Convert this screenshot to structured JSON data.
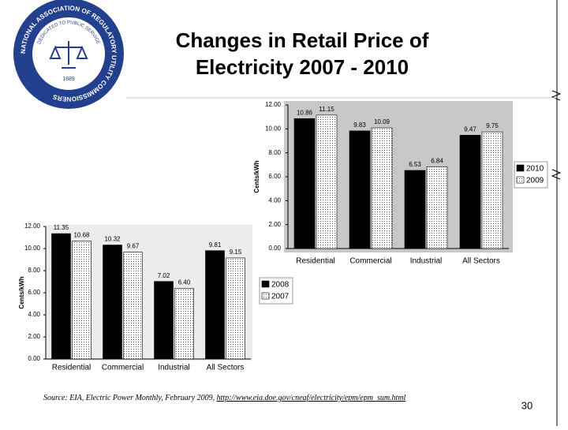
{
  "title_lines": [
    "Changes in Retail Price of",
    "Electricity 2007 - 2010"
  ],
  "logo": {
    "outer_text": "NATIONAL ASSOCIATION OF REGULATORY UTILITY COMMISSIONERS",
    "inner_text": "DEDICATED TO PUBLIC SERVICE",
    "year": "1889"
  },
  "source": {
    "text": "Source: EIA, Electric Power Monthly, February 2009, ",
    "url": "http://www.eia.doe.gov/cneaf/electricity/epm/epm_sum.html"
  },
  "page_number": "30",
  "chart_data": [
    {
      "type": "bar",
      "y_label": "Cents/kWh",
      "categories": [
        "Residential",
        "Commercial",
        "Industrial",
        "All Sectors"
      ],
      "series": [
        {
          "name": "2010",
          "color": "#000000",
          "values": [
            10.86,
            9.83,
            6.53,
            9.47
          ]
        },
        {
          "name": "2009",
          "color": "#ffffff",
          "pattern": "dots",
          "values": [
            11.15,
            10.09,
            6.84,
            9.75
          ]
        }
      ],
      "ylim": [
        0,
        12
      ],
      "yticks": [
        {
          "value": 0,
          "label": "0.00"
        },
        {
          "value": 2,
          "label": "2.00"
        },
        {
          "value": 4,
          "label": "4.00"
        },
        {
          "value": 6,
          "label": "6.00"
        },
        {
          "value": 8,
          "label": "8.00"
        },
        {
          "value": 10,
          "label": "10.00"
        },
        {
          "value": 12,
          "label": "12.00"
        }
      ],
      "legend": "right"
    },
    {
      "type": "bar",
      "y_label": "Cents/kWh",
      "categories": [
        "Residential",
        "Commercial",
        "Industrial",
        "All Sectors"
      ],
      "series": [
        {
          "name": "2008",
          "color": "#000000",
          "values": [
            11.35,
            10.32,
            7.02,
            9.81
          ]
        },
        {
          "name": "2007",
          "color": "#ffffff",
          "pattern": "dots",
          "values": [
            10.68,
            9.67,
            6.4,
            9.15
          ],
          "value_labels": [
            "10.68",
            "9.67",
            "6.40",
            "9.15"
          ]
        }
      ],
      "ylim": [
        0,
        12
      ],
      "yticks": [
        {
          "value": 0,
          "label": "0.00"
        },
        {
          "value": 2,
          "label": "2.00"
        },
        {
          "value": 4,
          "label": "4.00"
        },
        {
          "value": 6,
          "label": "6.00"
        },
        {
          "value": 8,
          "label": "8.00"
        },
        {
          "value": 10,
          "label": "10.00"
        },
        {
          "value": 12,
          "label": "12.00"
        }
      ],
      "legend": "right"
    }
  ]
}
